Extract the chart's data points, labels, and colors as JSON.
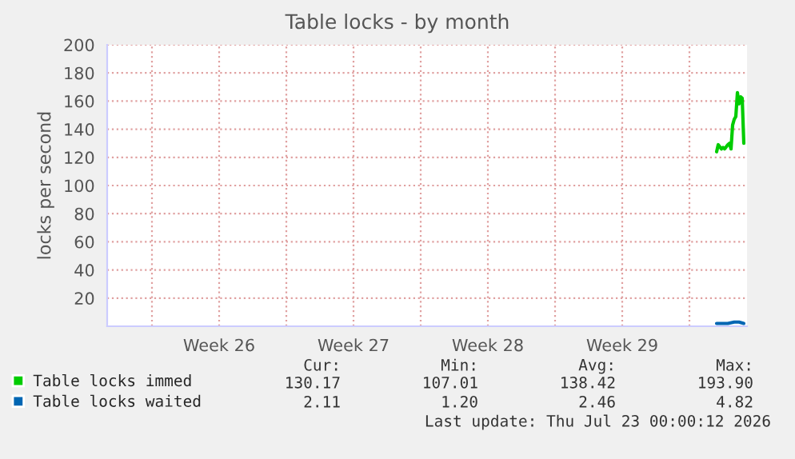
{
  "chart_data": {
    "type": "line",
    "title": "Table locks - by month",
    "ylabel": "locks per second",
    "series": [
      {
        "name": "Table locks immed",
        "color": "#00cc00",
        "x": [
          "2026-07-21T10:00",
          "2026-07-21T12:00",
          "2026-07-21T16:00",
          "2026-07-21T18:00",
          "2026-07-21T20:00",
          "2026-07-22T00:00",
          "2026-07-22T02:00",
          "2026-07-22T04:00",
          "2026-07-22T06:00",
          "2026-07-22T08:00",
          "2026-07-22T10:00",
          "2026-07-22T12:00",
          "2026-07-22T14:00",
          "2026-07-22T16:00",
          "2026-07-22T18:00",
          "2026-07-22T20:00"
        ],
        "values": [
          124,
          129,
          126,
          127,
          126,
          129,
          130,
          126,
          143,
          147,
          149,
          166,
          158,
          163,
          162,
          130
        ]
      },
      {
        "name": "Table locks waited",
        "color": "#0066b3",
        "x": [
          "2026-07-21T10:00",
          "2026-07-22T00:00",
          "2026-07-22T08:00",
          "2026-07-22T14:00",
          "2026-07-22T20:00"
        ],
        "values": [
          2,
          2,
          3,
          3,
          2
        ]
      }
    ],
    "xlim": [
      "2026-06-19T16:00",
      "2026-07-23T00:00"
    ],
    "xticks": [
      {
        "value": "2026-06-22",
        "label": null
      },
      {
        "value": "2026-06-25T12:00",
        "label": "Week 26"
      },
      {
        "value": "2026-06-29",
        "label": null
      },
      {
        "value": "2026-07-02T12:00",
        "label": "Week 27"
      },
      {
        "value": "2026-07-06",
        "label": null
      },
      {
        "value": "2026-07-09T12:00",
        "label": "Week 28"
      },
      {
        "value": "2026-07-13",
        "label": null
      },
      {
        "value": "2026-07-16T12:00",
        "label": "Week 29"
      },
      {
        "value": "2026-07-20",
        "label": null
      }
    ],
    "ylim": [
      0,
      200
    ],
    "yticks": [
      20,
      40,
      60,
      80,
      100,
      120,
      140,
      160,
      180,
      200
    ],
    "grid": true,
    "legend": "bottom left",
    "marker": "none",
    "line_style": "solid",
    "annotations": [
      "Cur:",
      "Min:",
      "Avg:",
      "Max:",
      "130.17",
      "107.01",
      "138.42",
      "193.90",
      "2.11",
      "1.20",
      "2.46",
      "4.82",
      "Last update: Thu Jul 23 00:00:12 2026"
    ]
  }
}
